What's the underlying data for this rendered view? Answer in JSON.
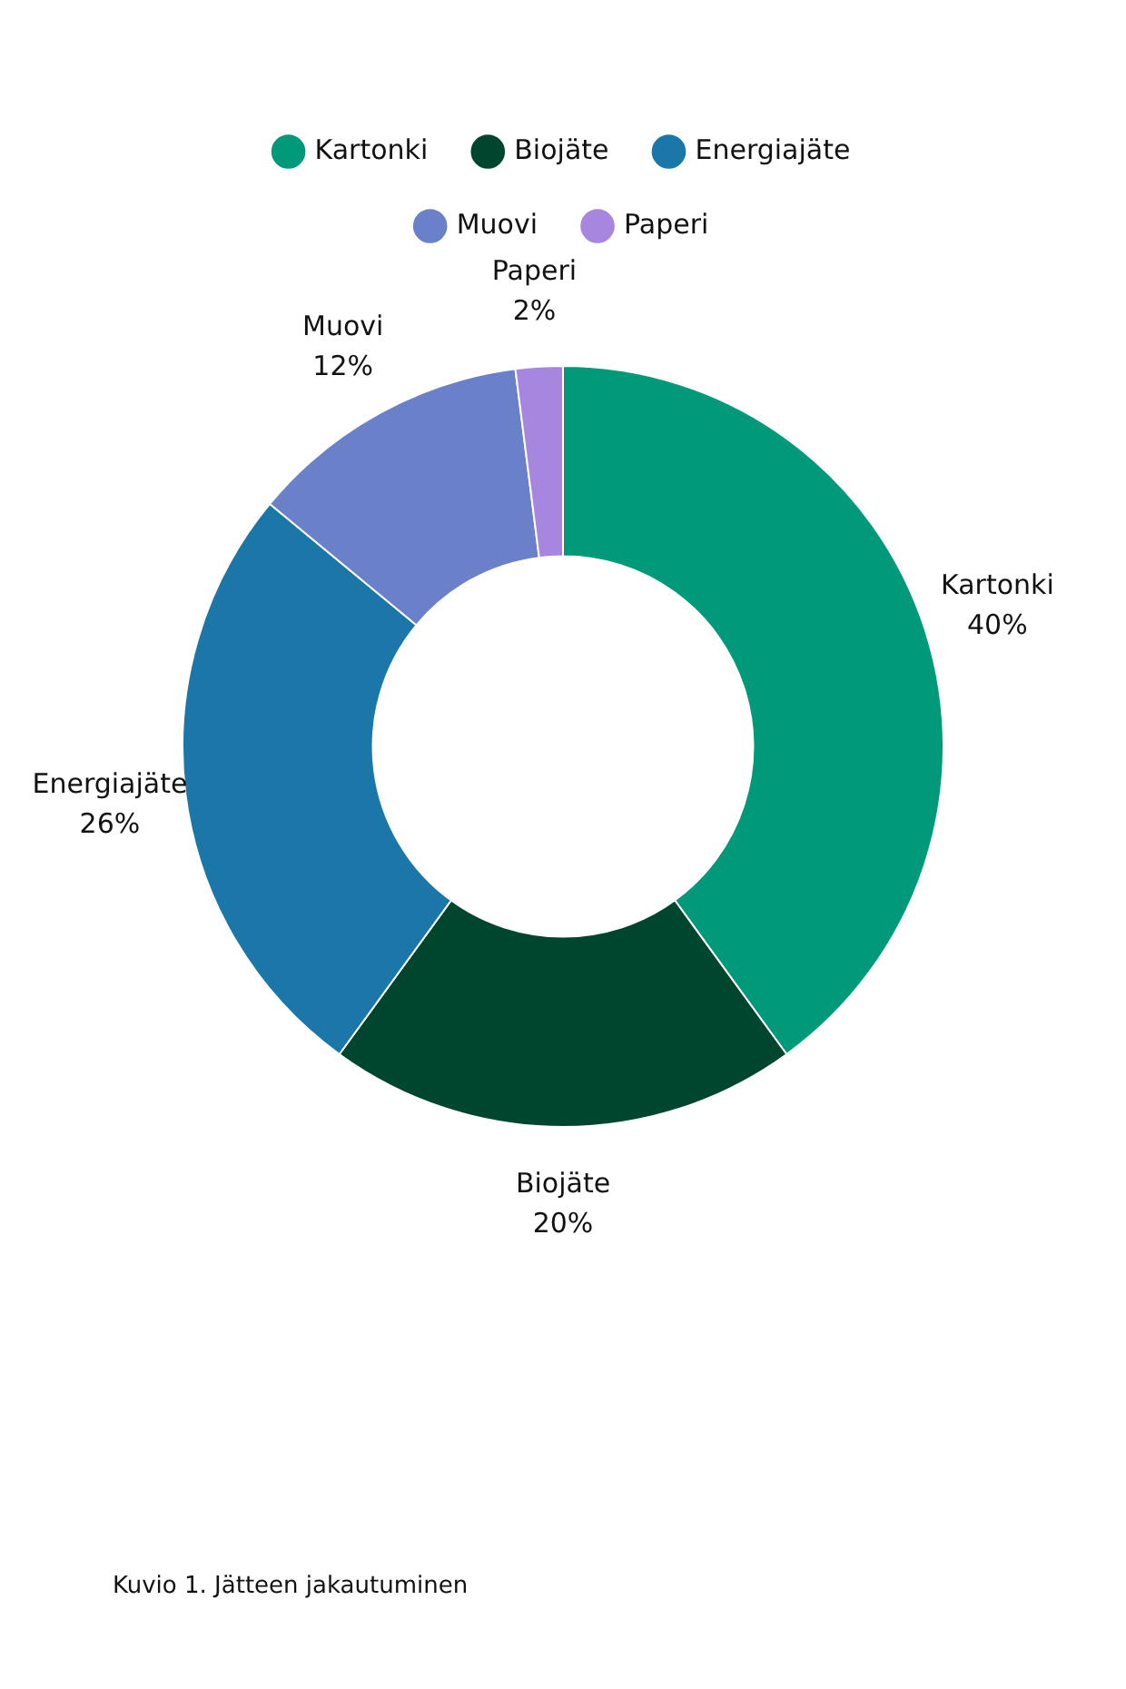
{
  "chart_data": {
    "type": "donut",
    "categories": [
      "Kartonki",
      "Biojäte",
      "Energiajäte",
      "Muovi",
      "Paperi"
    ],
    "values": [
      40,
      20,
      26,
      12,
      2
    ],
    "value_labels": [
      "40%",
      "20%",
      "26%",
      "12%",
      "2%"
    ],
    "colors": [
      "#00997a",
      "#00462f",
      "#1b77a8",
      "#6a80c8",
      "#a786e0"
    ],
    "legend": "top",
    "annotations": [
      "Kuvio 1. Jätteen jakautuminen"
    ]
  }
}
